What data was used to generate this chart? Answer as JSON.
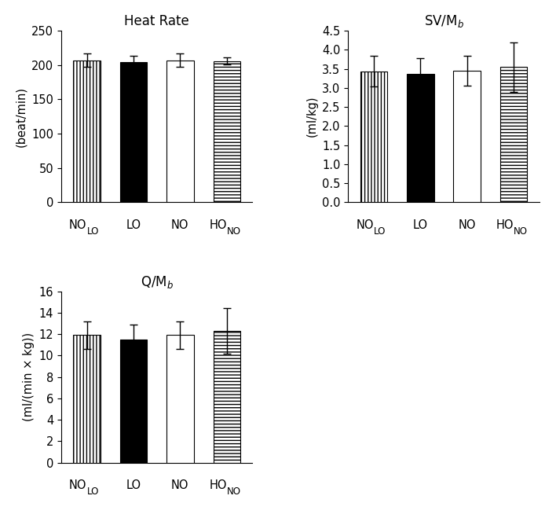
{
  "panels": [
    {
      "title": "Heat Rate",
      "ylabel": "(beat/min)",
      "ylim": [
        0,
        250
      ],
      "yticks": [
        0,
        50,
        100,
        150,
        200,
        250
      ],
      "values": [
        207,
        204,
        207,
        206
      ],
      "errors": [
        10,
        10,
        10,
        5
      ]
    },
    {
      "title": "SV/M$_b$",
      "ylabel": "(ml/kg)",
      "ylim": [
        0,
        4.5
      ],
      "yticks": [
        0.0,
        0.5,
        1.0,
        1.5,
        2.0,
        2.5,
        3.0,
        3.5,
        4.0,
        4.5
      ],
      "values": [
        3.44,
        3.37,
        3.45,
        3.55
      ],
      "errors": [
        0.4,
        0.42,
        0.4,
        0.65
      ]
    },
    {
      "title": "Q/M$_b$",
      "ylabel": "(ml/(min × kg))",
      "ylim": [
        0,
        16
      ],
      "yticks": [
        0,
        2,
        4,
        6,
        8,
        10,
        12,
        14,
        16
      ],
      "values": [
        11.9,
        11.5,
        11.9,
        12.3
      ],
      "errors": [
        1.3,
        1.4,
        1.3,
        2.1
      ]
    }
  ],
  "bar_width": 0.58,
  "bar_styles": [
    {
      "color": "white",
      "hatch": "||||",
      "edgecolor": "black",
      "linewidth": 0.8
    },
    {
      "color": "black",
      "hatch": "",
      "edgecolor": "black",
      "linewidth": 0.8
    },
    {
      "color": "white",
      "hatch": "",
      "edgecolor": "black",
      "linewidth": 0.8
    },
    {
      "color": "white",
      "hatch": "----",
      "edgecolor": "black",
      "linewidth": 0.8
    }
  ],
  "font_size": 10.5,
  "title_font_size": 12,
  "tick_font_size": 10.5
}
